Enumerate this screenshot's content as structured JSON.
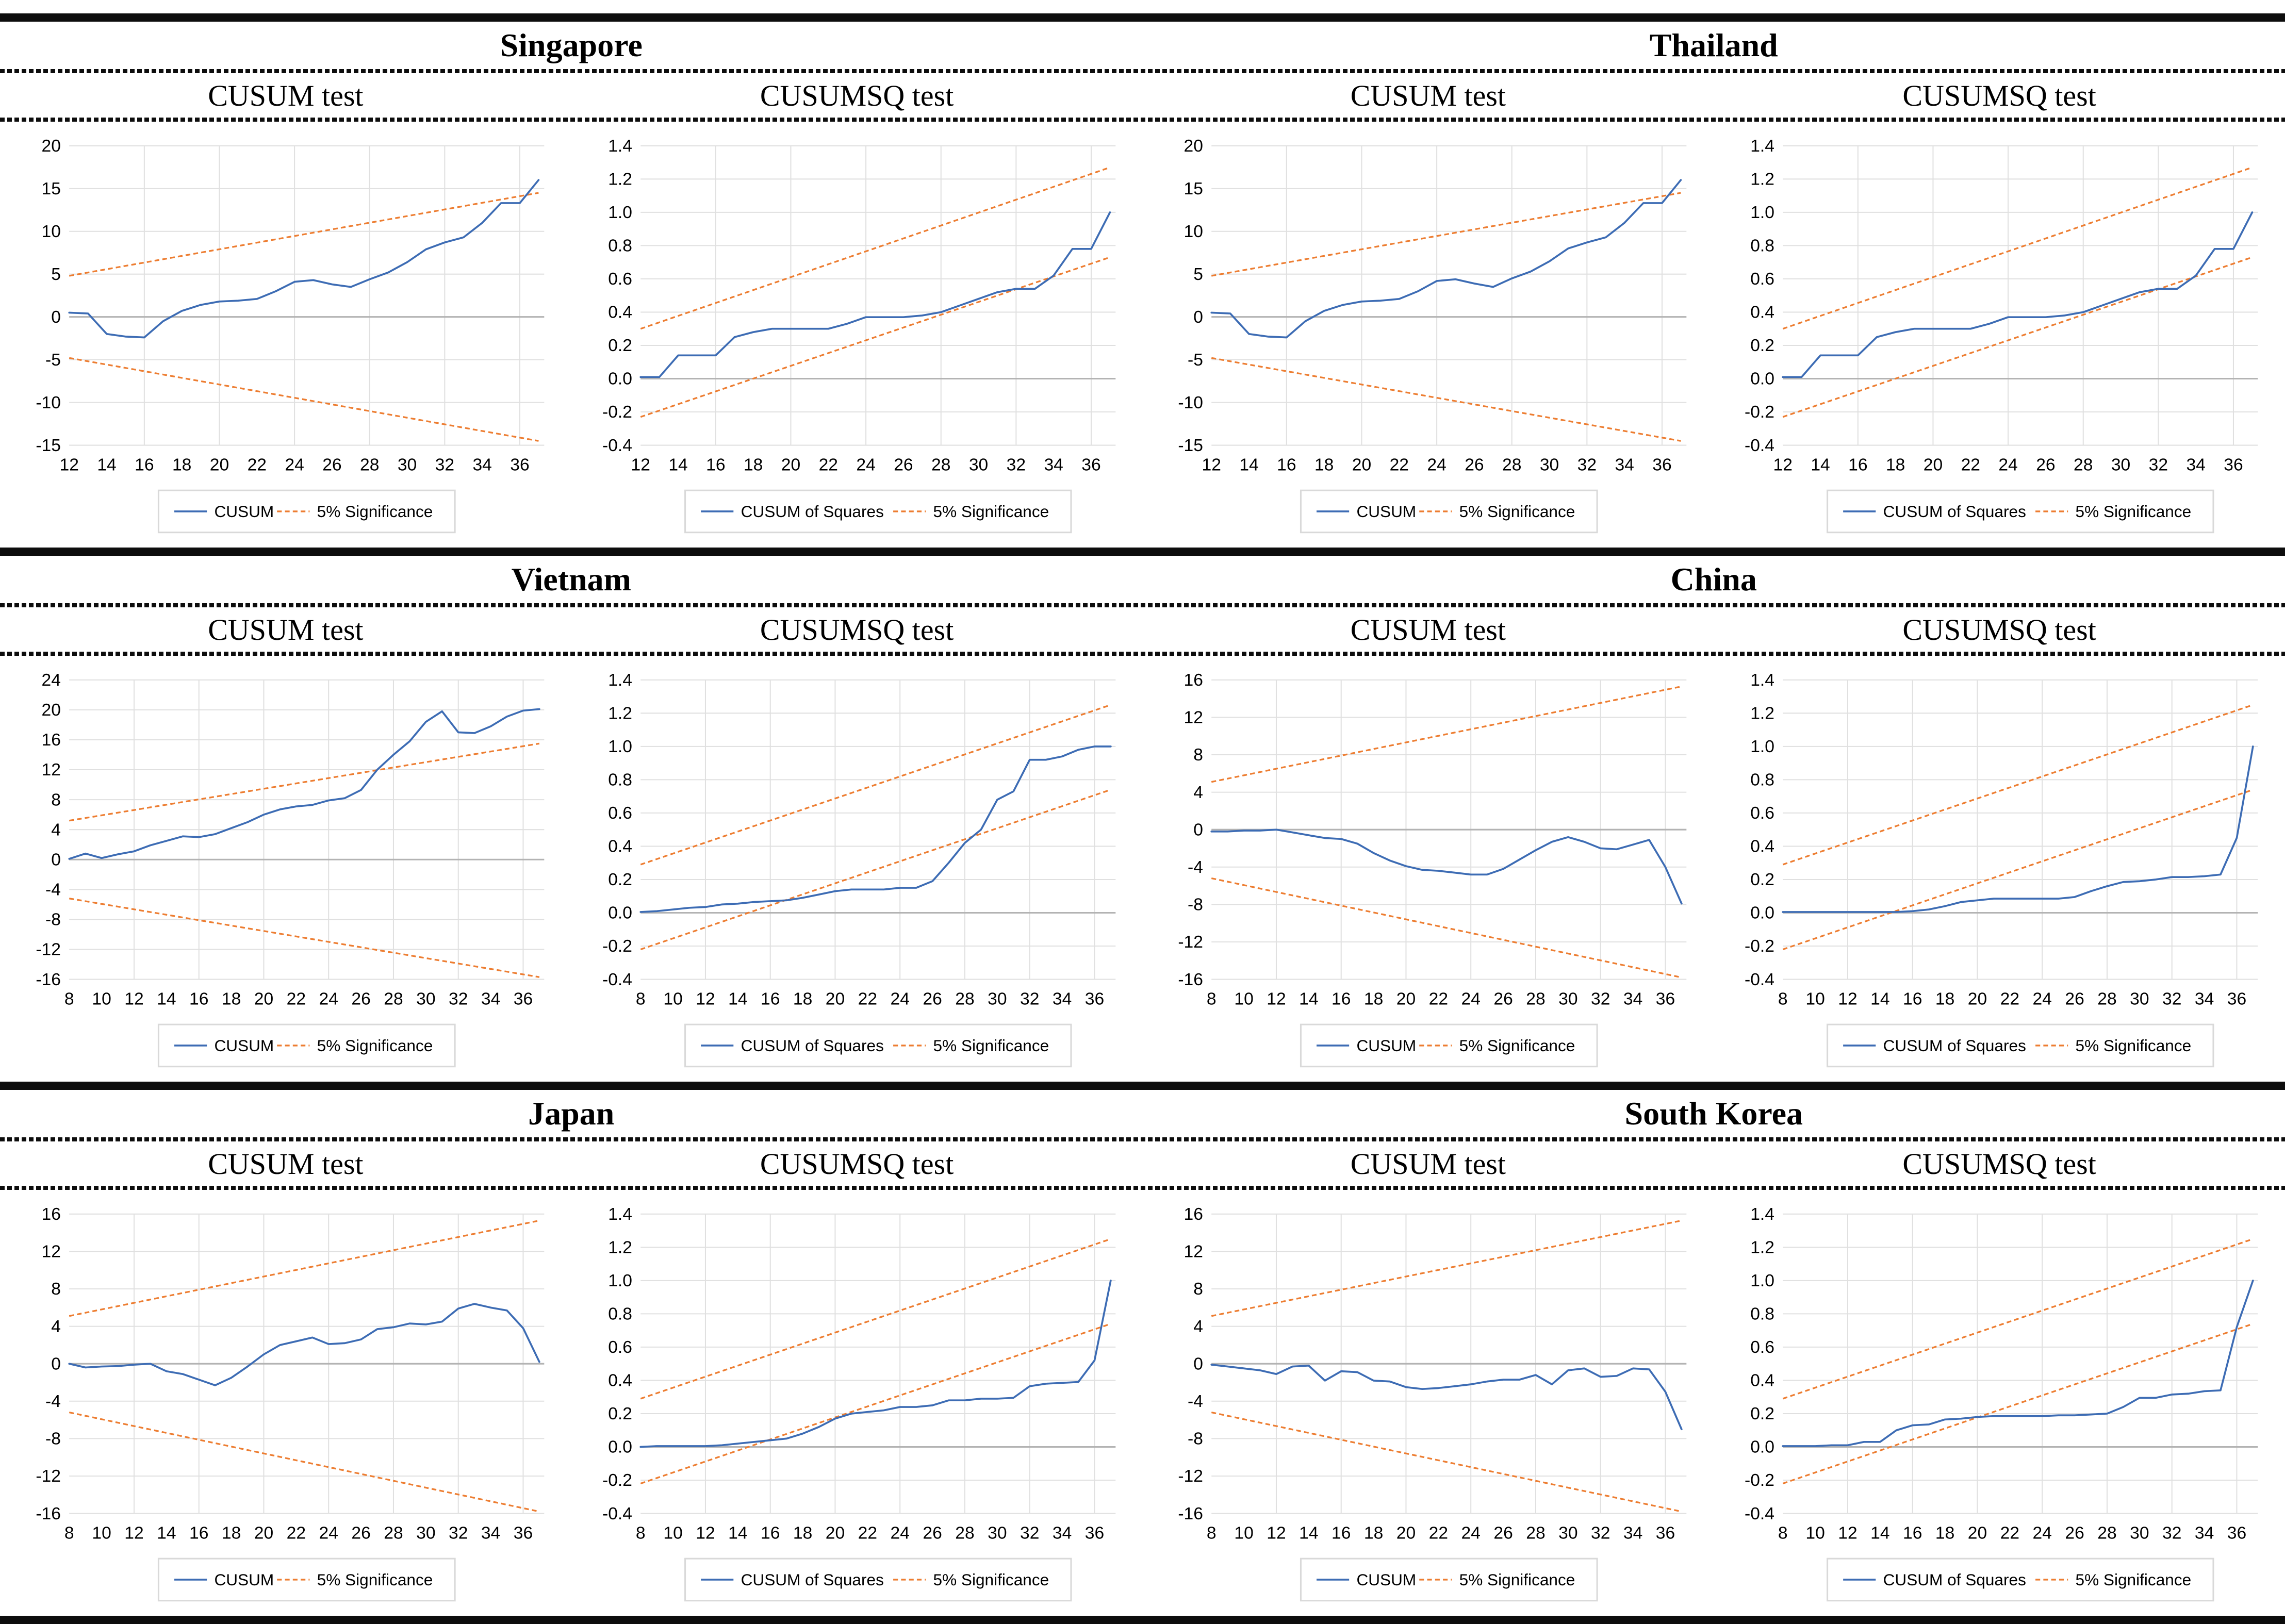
{
  "countries": [
    "Singapore",
    "Thailand",
    "Vietnam",
    "China",
    "Japan",
    "South Korea"
  ],
  "colors": {
    "series_blue": "#3d6cb4",
    "significance_orange": "#ed7d31",
    "gridline": "#e0e0e0",
    "zero_line": "#b3b3b3",
    "legend_border": "#d9d9d9",
    "rule_black": "#0d0d0d"
  },
  "legend_labels": {
    "cusum": "CUSUM",
    "cusumsq": "CUSUM of Squares",
    "significance": "5% Significance"
  },
  "chart_data": [
    {
      "type": "line",
      "country": "Singapore",
      "title": "CUSUM test",
      "legend": [
        "CUSUM",
        "5% Significance"
      ],
      "x_start": 12,
      "x_end": 37,
      "xtick_step": 2,
      "xticks_to": 36,
      "ylim": [
        -15,
        20
      ],
      "yticks": [
        "20",
        "15",
        "10",
        "5",
        "0",
        "-5",
        "-10",
        "-15"
      ],
      "grid": true,
      "legend_position": "bottom",
      "values": [
        0.5,
        0.4,
        -2.0,
        -2.3,
        -2.4,
        -0.5,
        0.7,
        1.4,
        1.8,
        1.9,
        2.1,
        3.0,
        4.1,
        4.3,
        3.8,
        3.5,
        4.4,
        5.2,
        6.4,
        7.9,
        8.7,
        9.3,
        11.0,
        13.3,
        13.3,
        16.0
      ],
      "sig_upper": [
        4.8,
        14.5
      ],
      "sig_lower": [
        -4.8,
        -14.5
      ]
    },
    {
      "type": "line",
      "country": "Singapore",
      "title": "CUSUMSQ test",
      "legend": [
        "CUSUM of Squares",
        "5% Significance"
      ],
      "x_start": 12,
      "x_end": 37,
      "xtick_step": 2,
      "xticks_to": 36,
      "ylim": [
        -0.4,
        1.4
      ],
      "yticks": [
        "1.4",
        "1.2",
        "1.0",
        "0.8",
        "0.6",
        "0.4",
        "0.2",
        "0.0",
        "-0.2",
        "-0.4"
      ],
      "grid": true,
      "legend_position": "bottom",
      "values": [
        0.01,
        0.01,
        0.14,
        0.14,
        0.14,
        0.25,
        0.28,
        0.3,
        0.3,
        0.3,
        0.3,
        0.33,
        0.37,
        0.37,
        0.37,
        0.38,
        0.4,
        0.44,
        0.48,
        0.52,
        0.54,
        0.54,
        0.62,
        0.78,
        0.78,
        1.0
      ],
      "sig_upper": [
        0.3,
        1.27
      ],
      "sig_lower": [
        -0.23,
        0.73
      ]
    },
    {
      "type": "line",
      "country": "Thailand",
      "title": "CUSUM test",
      "legend": [
        "CUSUM",
        "5% Significance"
      ],
      "x_start": 12,
      "x_end": 37,
      "xtick_step": 2,
      "xticks_to": 36,
      "ylim": [
        -15,
        20
      ],
      "yticks": [
        "20",
        "15",
        "10",
        "5",
        "0",
        "-5",
        "-10",
        "-15"
      ],
      "grid": true,
      "legend_position": "bottom",
      "values": [
        0.5,
        0.4,
        -2.0,
        -2.3,
        -2.4,
        -0.5,
        0.7,
        1.4,
        1.8,
        1.9,
        2.1,
        3.0,
        4.2,
        4.4,
        3.9,
        3.5,
        4.5,
        5.3,
        6.5,
        8.0,
        8.7,
        9.3,
        11.0,
        13.3,
        13.3,
        16.0
      ],
      "sig_upper": [
        4.8,
        14.5
      ],
      "sig_lower": [
        -4.8,
        -14.5
      ]
    },
    {
      "type": "line",
      "country": "Thailand",
      "title": "CUSUMSQ test",
      "legend": [
        "CUSUM of Squares",
        "5% Significance"
      ],
      "x_start": 12,
      "x_end": 37,
      "xtick_step": 2,
      "xticks_to": 36,
      "ylim": [
        -0.4,
        1.4
      ],
      "yticks": [
        "1.4",
        "1.2",
        "1.0",
        "0.8",
        "0.6",
        "0.4",
        "0.2",
        "0.0",
        "-0.2",
        "-0.4"
      ],
      "grid": true,
      "legend_position": "bottom",
      "values": [
        0.01,
        0.01,
        0.14,
        0.14,
        0.14,
        0.25,
        0.28,
        0.3,
        0.3,
        0.3,
        0.3,
        0.33,
        0.37,
        0.37,
        0.37,
        0.38,
        0.4,
        0.44,
        0.48,
        0.52,
        0.54,
        0.54,
        0.62,
        0.78,
        0.78,
        1.0
      ],
      "sig_upper": [
        0.3,
        1.27
      ],
      "sig_lower": [
        -0.23,
        0.73
      ]
    },
    {
      "type": "line",
      "country": "Vietnam",
      "title": "CUSUM test",
      "legend": [
        "CUSUM",
        "5% Significance"
      ],
      "x_start": 8,
      "x_end": 37,
      "xtick_step": 2,
      "xticks_to": 36,
      "ylim": [
        -16,
        24
      ],
      "yticks": [
        "24",
        "20",
        "16",
        "12",
        "8",
        "4",
        "0",
        "-4",
        "-8",
        "-12",
        "-16"
      ],
      "grid": true,
      "legend_position": "bottom",
      "values": [
        0.1,
        0.8,
        0.2,
        0.7,
        1.1,
        1.9,
        2.5,
        3.1,
        3.0,
        3.4,
        4.2,
        5.0,
        6.0,
        6.7,
        7.1,
        7.3,
        7.9,
        8.2,
        9.3,
        12.0,
        14.0,
        15.8,
        18.4,
        19.8,
        17.0,
        16.9,
        17.8,
        19.1,
        19.9,
        20.1
      ],
      "sig_upper": [
        5.2,
        15.5
      ],
      "sig_lower": [
        -5.2,
        -15.7
      ]
    },
    {
      "type": "line",
      "country": "Vietnam",
      "title": "CUSUMSQ test",
      "legend": [
        "CUSUM of Squares",
        "5% Significance"
      ],
      "x_start": 8,
      "x_end": 37,
      "xtick_step": 2,
      "xticks_to": 36,
      "ylim": [
        -0.4,
        1.4
      ],
      "yticks": [
        "1.4",
        "1.2",
        "1.0",
        "0.8",
        "0.6",
        "0.4",
        "0.2",
        "0.0",
        "-0.2",
        "-0.4"
      ],
      "grid": true,
      "legend_position": "bottom",
      "values": [
        0.005,
        0.01,
        0.02,
        0.03,
        0.035,
        0.05,
        0.055,
        0.065,
        0.07,
        0.075,
        0.09,
        0.11,
        0.13,
        0.14,
        0.14,
        0.14,
        0.15,
        0.15,
        0.19,
        0.3,
        0.42,
        0.5,
        0.68,
        0.73,
        0.92,
        0.92,
        0.94,
        0.98,
        1.0,
        1.0
      ],
      "sig_upper": [
        0.29,
        1.25
      ],
      "sig_lower": [
        -0.22,
        0.74
      ]
    },
    {
      "type": "line",
      "country": "China",
      "title": "CUSUM test",
      "legend": [
        "CUSUM",
        "5% Significance"
      ],
      "x_start": 8,
      "x_end": 37,
      "xtick_step": 2,
      "xticks_to": 36,
      "ylim": [
        -16,
        16
      ],
      "yticks": [
        "16",
        "12",
        "8",
        "4",
        "0",
        "-4",
        "-8",
        "-12",
        "-16"
      ],
      "grid": true,
      "legend_position": "bottom",
      "values": [
        -0.2,
        -0.2,
        -0.1,
        -0.1,
        0.0,
        -0.3,
        -0.6,
        -0.9,
        -1.0,
        -1.5,
        -2.5,
        -3.3,
        -3.9,
        -4.3,
        -4.4,
        -4.6,
        -4.8,
        -4.8,
        -4.2,
        -3.2,
        -2.2,
        -1.3,
        -0.8,
        -1.3,
        -2.0,
        -2.1,
        -1.6,
        -1.1,
        -4.0,
        -7.9
      ],
      "sig_upper": [
        5.1,
        15.3
      ],
      "sig_lower": [
        -5.2,
        -15.8
      ]
    },
    {
      "type": "line",
      "country": "China",
      "title": "CUSUMSQ test",
      "legend": [
        "CUSUM of Squares",
        "5% Significance"
      ],
      "x_start": 8,
      "x_end": 37,
      "xtick_step": 2,
      "xticks_to": 36,
      "ylim": [
        -0.4,
        1.4
      ],
      "yticks": [
        "1.4",
        "1.2",
        "1.0",
        "0.8",
        "0.6",
        "0.4",
        "0.2",
        "0.0",
        "-0.2",
        "-0.4"
      ],
      "grid": true,
      "legend_position": "bottom",
      "values": [
        0.005,
        0.005,
        0.005,
        0.005,
        0.005,
        0.005,
        0.005,
        0.005,
        0.01,
        0.02,
        0.04,
        0.065,
        0.075,
        0.085,
        0.085,
        0.085,
        0.085,
        0.085,
        0.095,
        0.13,
        0.16,
        0.185,
        0.19,
        0.2,
        0.215,
        0.215,
        0.22,
        0.23,
        0.45,
        1.0
      ],
      "sig_upper": [
        0.29,
        1.25
      ],
      "sig_lower": [
        -0.22,
        0.74
      ]
    },
    {
      "type": "line",
      "country": "Japan",
      "title": "CUSUM test",
      "legend": [
        "CUSUM",
        "5% Significance"
      ],
      "x_start": 8,
      "x_end": 37,
      "xtick_step": 2,
      "xticks_to": 36,
      "ylim": [
        -16,
        16
      ],
      "yticks": [
        "16",
        "12",
        "8",
        "4",
        "0",
        "-4",
        "-8",
        "-12",
        "-16"
      ],
      "grid": true,
      "legend_position": "bottom",
      "values": [
        0.0,
        -0.4,
        -0.3,
        -0.25,
        -0.1,
        0.0,
        -0.8,
        -1.1,
        -1.7,
        -2.3,
        -1.5,
        -0.3,
        1.0,
        2.0,
        2.4,
        2.8,
        2.1,
        2.2,
        2.6,
        3.7,
        3.9,
        4.3,
        4.2,
        4.5,
        5.9,
        6.4,
        6.0,
        5.7,
        3.8,
        0.2
      ],
      "sig_upper": [
        5.1,
        15.3
      ],
      "sig_lower": [
        -5.2,
        -15.8
      ]
    },
    {
      "type": "line",
      "country": "Japan",
      "title": "CUSUMSQ test",
      "legend": [
        "CUSUM of Squares",
        "5% Significance"
      ],
      "x_start": 8,
      "x_end": 37,
      "xtick_step": 2,
      "xticks_to": 36,
      "ylim": [
        -0.4,
        1.4
      ],
      "yticks": [
        "1.4",
        "1.2",
        "1.0",
        "0.8",
        "0.6",
        "0.4",
        "0.2",
        "0.0",
        "-0.2",
        "-0.4"
      ],
      "grid": true,
      "legend_position": "bottom",
      "values": [
        0.0,
        0.005,
        0.005,
        0.005,
        0.005,
        0.01,
        0.02,
        0.03,
        0.04,
        0.05,
        0.08,
        0.12,
        0.17,
        0.2,
        0.21,
        0.22,
        0.24,
        0.24,
        0.25,
        0.28,
        0.28,
        0.29,
        0.29,
        0.295,
        0.365,
        0.38,
        0.385,
        0.39,
        0.52,
        1.0
      ],
      "sig_upper": [
        0.29,
        1.25
      ],
      "sig_lower": [
        -0.22,
        0.74
      ]
    },
    {
      "type": "line",
      "country": "South Korea",
      "title": "CUSUM test",
      "legend": [
        "CUSUM",
        "5% Significance"
      ],
      "x_start": 8,
      "x_end": 37,
      "xtick_step": 2,
      "xticks_to": 36,
      "ylim": [
        -16,
        16
      ],
      "yticks": [
        "16",
        "12",
        "8",
        "4",
        "0",
        "-4",
        "-8",
        "-12",
        "-16"
      ],
      "grid": true,
      "legend_position": "bottom",
      "values": [
        -0.1,
        -0.3,
        -0.5,
        -0.7,
        -1.1,
        -0.3,
        -0.2,
        -1.8,
        -0.8,
        -0.9,
        -1.8,
        -1.9,
        -2.5,
        -2.7,
        -2.6,
        -2.4,
        -2.2,
        -1.9,
        -1.7,
        -1.7,
        -1.2,
        -2.2,
        -0.7,
        -0.5,
        -1.4,
        -1.3,
        -0.5,
        -0.6,
        -3.0,
        -7.0
      ],
      "sig_upper": [
        5.1,
        15.3
      ],
      "sig_lower": [
        -5.2,
        -15.8
      ]
    },
    {
      "type": "line",
      "country": "South Korea",
      "title": "CUSUMSQ test",
      "legend": [
        "CUSUM of Squares",
        "5% Significance"
      ],
      "x_start": 8,
      "x_end": 37,
      "xtick_step": 2,
      "xticks_to": 36,
      "ylim": [
        -0.4,
        1.4
      ],
      "yticks": [
        "1.4",
        "1.2",
        "1.0",
        "0.8",
        "0.6",
        "0.4",
        "0.2",
        "0.0",
        "-0.2",
        "-0.4"
      ],
      "grid": true,
      "legend_position": "bottom",
      "values": [
        0.005,
        0.005,
        0.005,
        0.01,
        0.01,
        0.03,
        0.03,
        0.1,
        0.13,
        0.135,
        0.165,
        0.17,
        0.18,
        0.185,
        0.185,
        0.185,
        0.185,
        0.19,
        0.19,
        0.195,
        0.2,
        0.24,
        0.295,
        0.295,
        0.315,
        0.32,
        0.335,
        0.34,
        0.72,
        1.0
      ],
      "sig_upper": [
        0.29,
        1.25
      ],
      "sig_lower": [
        -0.22,
        0.74
      ]
    }
  ]
}
